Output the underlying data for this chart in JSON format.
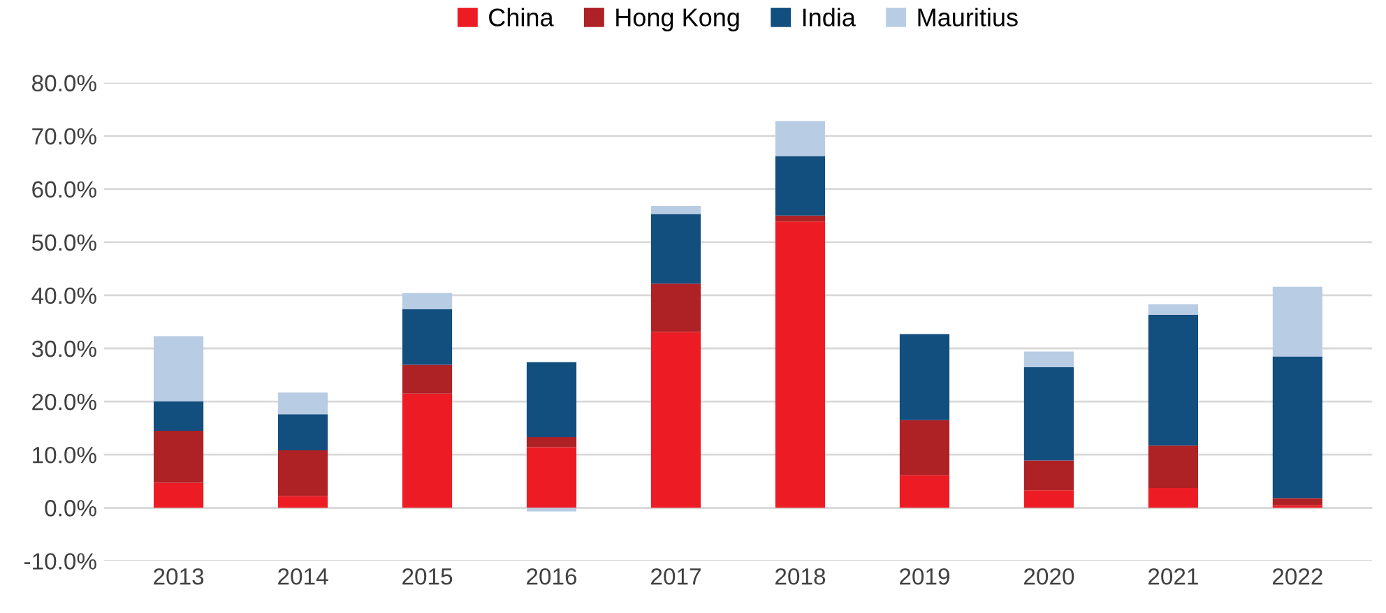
{
  "chart_data": {
    "type": "bar",
    "stacked": true,
    "categories": [
      "2013",
      "2014",
      "2015",
      "2016",
      "2017",
      "2018",
      "2019",
      "2020",
      "2021",
      "2022"
    ],
    "series": [
      {
        "name": "China",
        "color": "#ed1c24",
        "values": [
          4.7,
          2.2,
          21.5,
          11.4,
          33.1,
          53.9,
          6.1,
          3.3,
          3.7,
          0.5
        ]
      },
      {
        "name": "Hong Kong",
        "color": "#ae2125",
        "values": [
          9.8,
          8.6,
          5.4,
          1.9,
          9.1,
          1.1,
          10.4,
          5.6,
          8.0,
          1.3
        ]
      },
      {
        "name": "India",
        "color": "#124e7e",
        "values": [
          5.5,
          6.8,
          10.5,
          14.1,
          13.1,
          11.2,
          16.2,
          17.6,
          24.6,
          26.7
        ]
      },
      {
        "name": "Mauritius",
        "color": "#b8cce4",
        "values": [
          12.3,
          4.1,
          3.0,
          -0.7,
          1.5,
          6.6,
          0,
          2.9,
          2.0,
          13.1
        ]
      }
    ],
    "ylim": [
      -10,
      80
    ],
    "yticks": [
      {
        "value": -10,
        "label": "-10.0%"
      },
      {
        "value": 0,
        "label": "0.0%"
      },
      {
        "value": 10,
        "label": "10.0%"
      },
      {
        "value": 20,
        "label": "20.0%"
      },
      {
        "value": 30,
        "label": "30.0%"
      },
      {
        "value": 40,
        "label": "40.0%"
      },
      {
        "value": 50,
        "label": "50.0%"
      },
      {
        "value": 60,
        "label": "60.0%"
      },
      {
        "value": 70,
        "label": "70.0%"
      },
      {
        "value": 80,
        "label": "80.0%"
      }
    ],
    "grid": "y",
    "legend": "top"
  }
}
